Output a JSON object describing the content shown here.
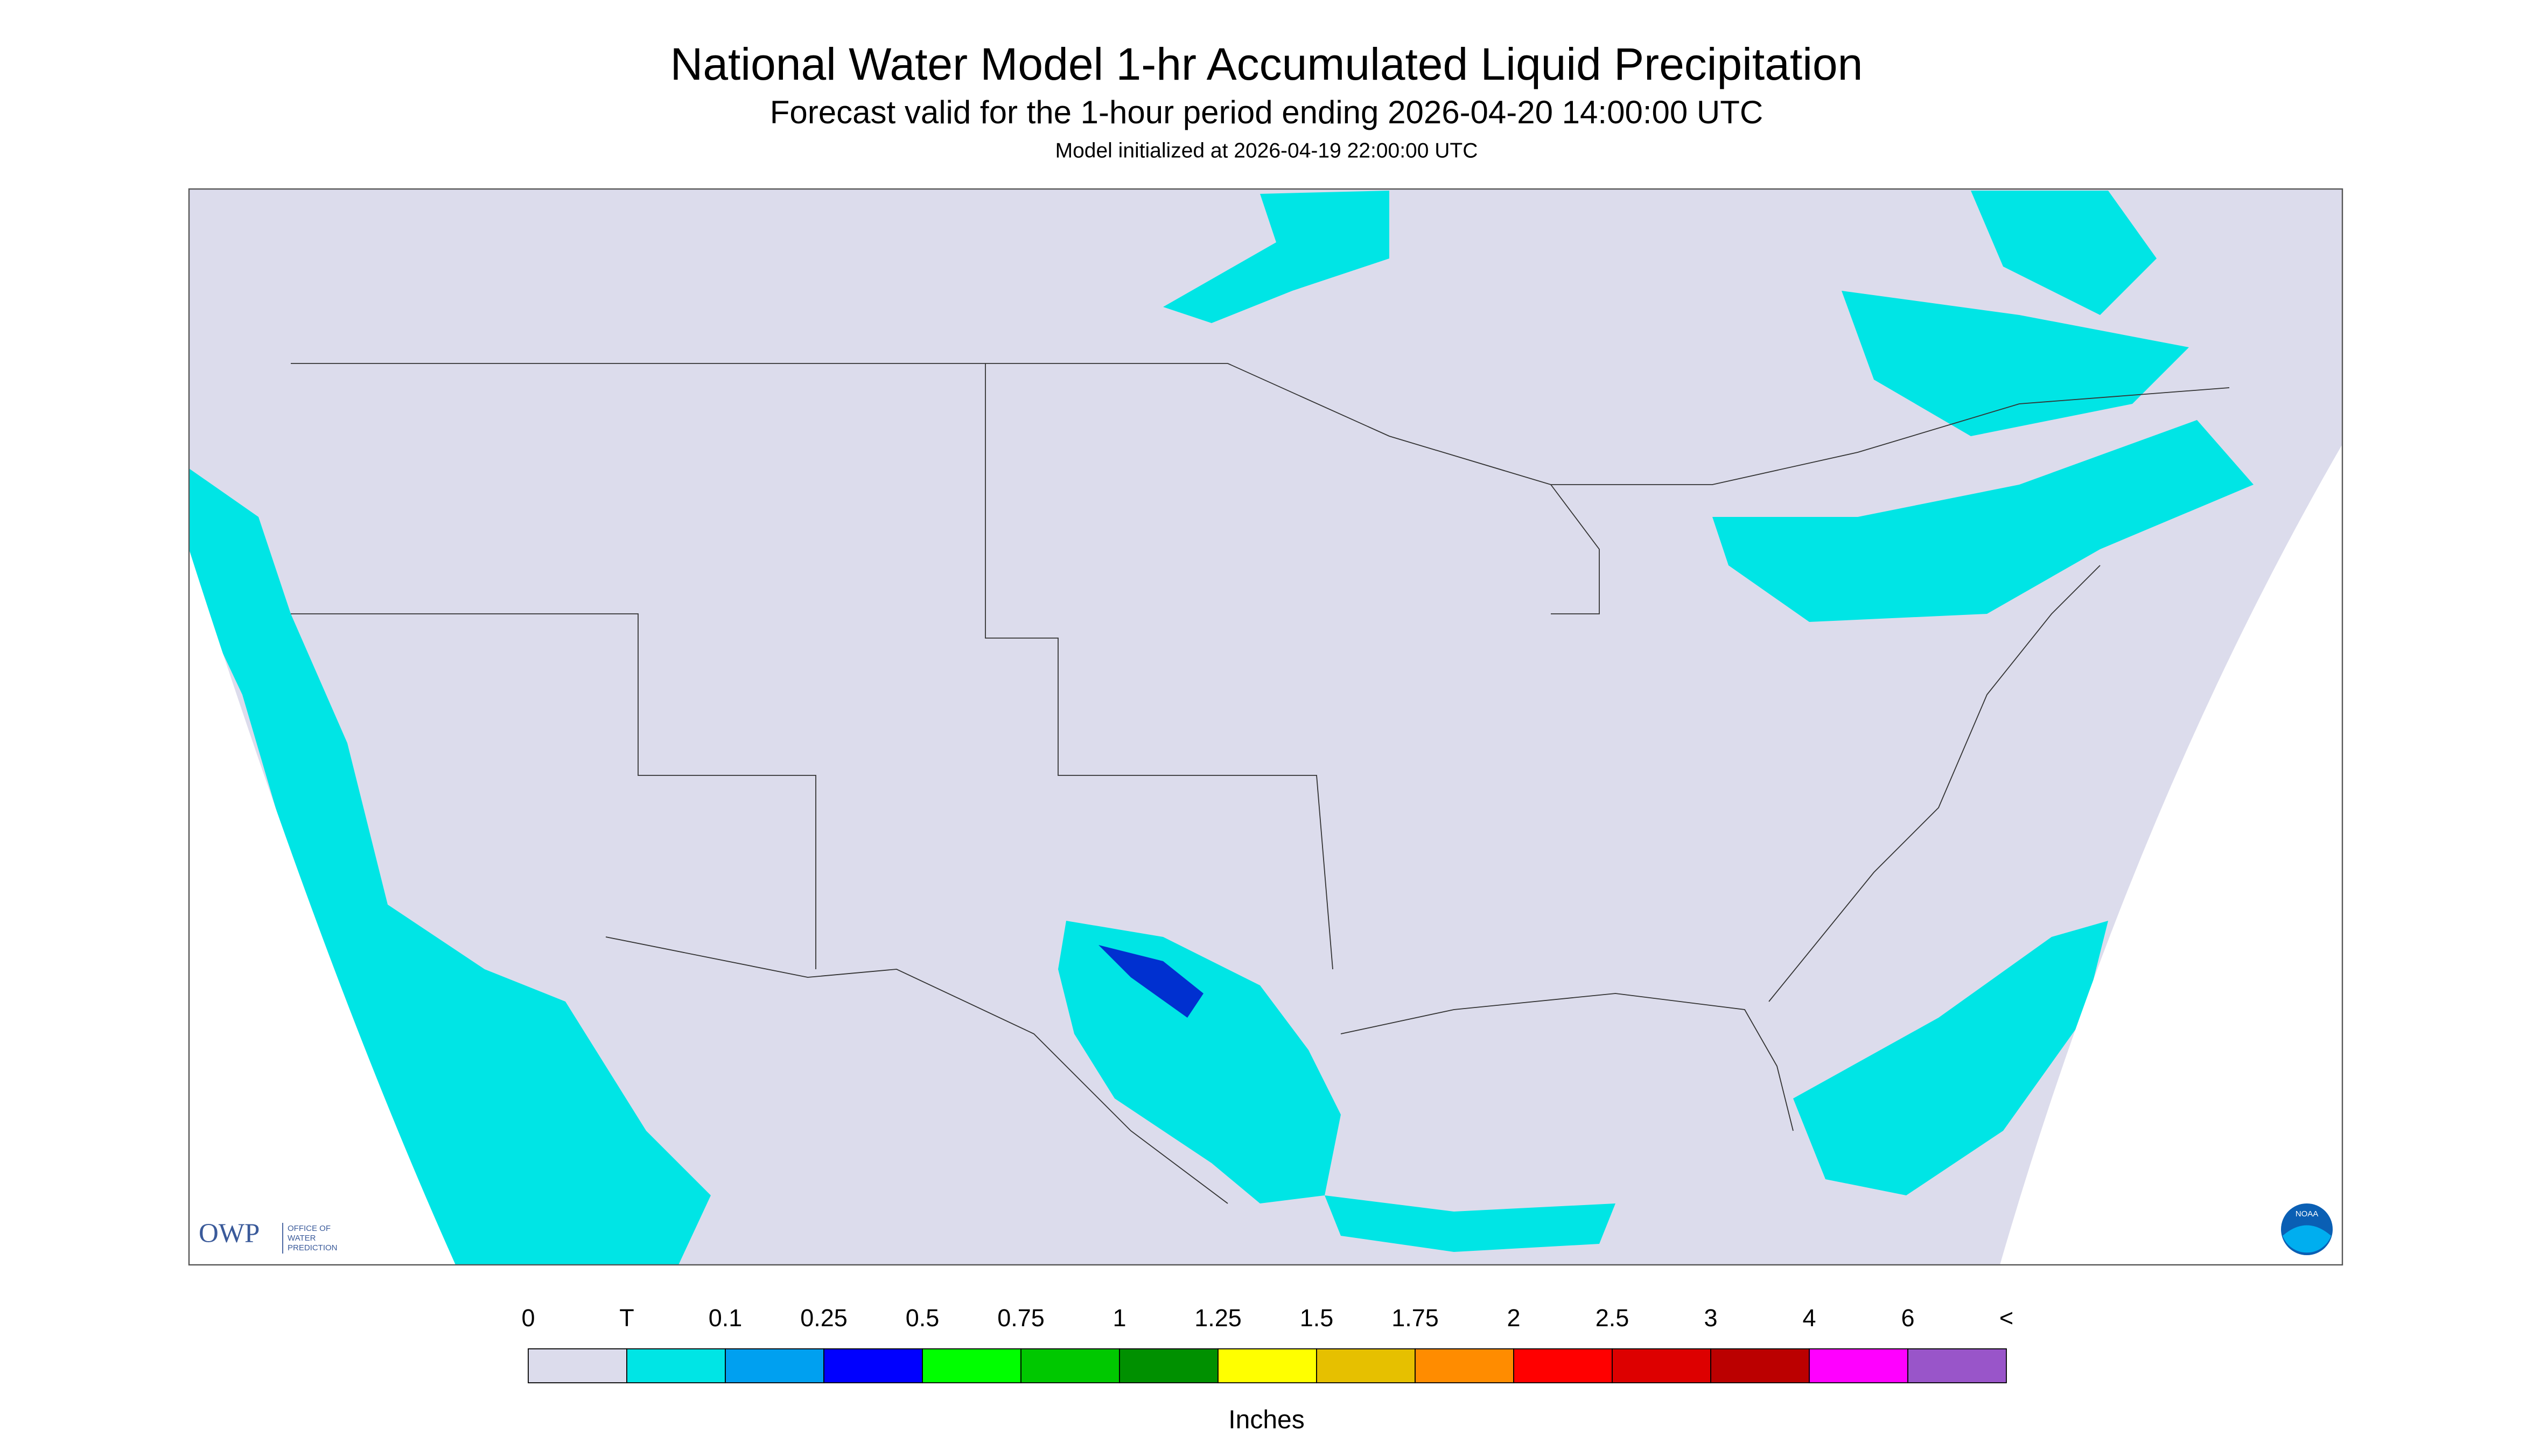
{
  "header": {
    "title": "National Water Model 1-hr Accumulated Liquid Precipitation",
    "subtitle": "Forecast valid for the 1-hour period ending 2026-04-20 14:00:00 UTC",
    "init": "Model initialized at 2026-04-19 22:00:00 UTC"
  },
  "logo": {
    "abbr": "OWP",
    "line1": "OFFICE OF",
    "line2": "WATER",
    "line3": "PREDICTION",
    "noaa": "NOAA"
  },
  "legend": {
    "labels": [
      "0",
      "T",
      "0.1",
      "0.25",
      "0.5",
      "0.75",
      "1",
      "1.25",
      "1.5",
      "1.75",
      "2",
      "2.5",
      "3",
      "4",
      "6",
      "<"
    ],
    "colors": [
      "#dcdcec",
      "#00e5e5",
      "#00a0f0",
      "#0000ff",
      "#00ff00",
      "#00c800",
      "#009000",
      "#ffff00",
      "#e6c000",
      "#ff8c00",
      "#ff0000",
      "#dd0000",
      "#bb0000",
      "#ff00ff",
      "#9955c9"
    ],
    "units": "Inches"
  }
}
